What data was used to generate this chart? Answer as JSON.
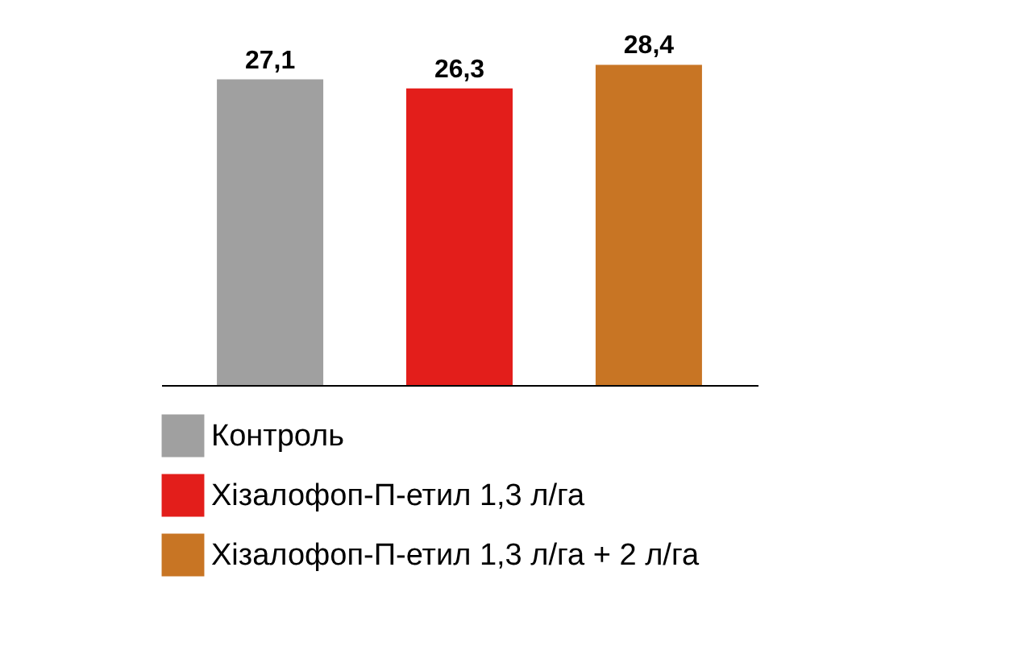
{
  "chart_data": {
    "type": "bar",
    "categories": [
      null,
      null,
      null
    ],
    "stacked": true,
    "series": [
      {
        "name": "Контроль",
        "color": "#a0a0a0",
        "values": [
          27.1,
          null,
          null
        ],
        "value_labels": [
          "27,1",
          null,
          null
        ]
      },
      {
        "name": "Хізалофоп-П-етил 1,3 л/га",
        "color": "#e31e1b",
        "values": [
          null,
          26.3,
          null
        ],
        "value_labels": [
          null,
          "26,3",
          null
        ]
      },
      {
        "name": "Хізалофоп-П-етил 1,3 л/га + 2 л/га",
        "color": "#c87524",
        "values": [
          null,
          null,
          28.4
        ],
        "value_labels": [
          null,
          null,
          "28,4"
        ]
      }
    ],
    "legend": "bottom",
    "grid": false
  }
}
